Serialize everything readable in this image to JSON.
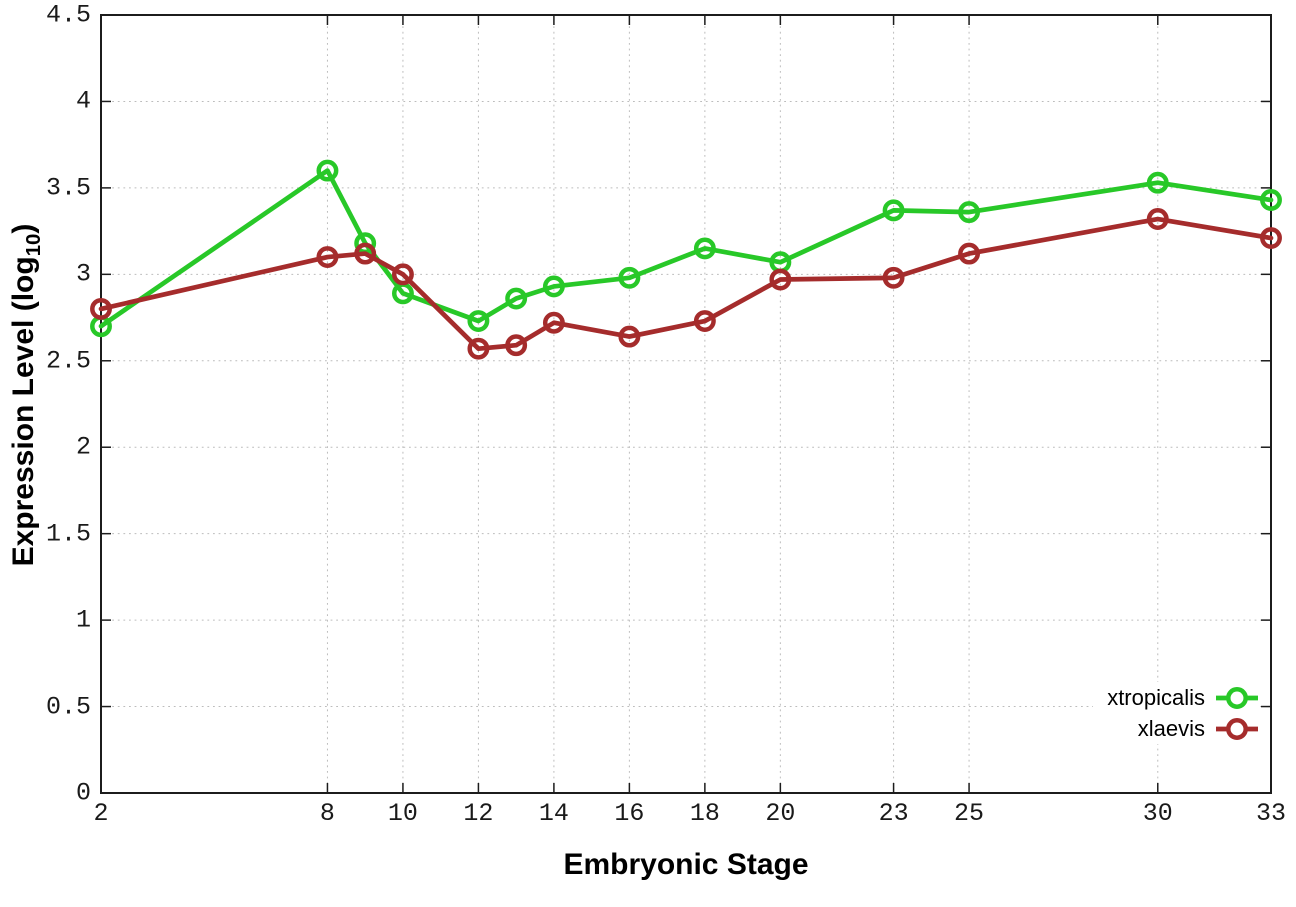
{
  "chart_data": {
    "type": "line",
    "title": "",
    "xlabel": "Embryonic Stage",
    "ylabel": "Expression Level (log10)",
    "ylabel_parts": {
      "main": "Expression Level (log",
      "sub": "10",
      "close": ")"
    },
    "xlim": [
      2,
      33
    ],
    "ylim": [
      0,
      4.5
    ],
    "grid": true,
    "legend_position": "inside-bottom-right",
    "background_color": "#ffffff",
    "axis_color": "#1c1c1c",
    "grid_color": "#bcbcbc",
    "x_ticks": [
      {
        "value": 2,
        "label": "2"
      },
      {
        "value": 8,
        "label": "8"
      },
      {
        "value": 10,
        "label": "10"
      },
      {
        "value": 12,
        "label": "12"
      },
      {
        "value": 14,
        "label": "14"
      },
      {
        "value": 16,
        "label": "16"
      },
      {
        "value": 18,
        "label": "18"
      },
      {
        "value": 20,
        "label": "20"
      },
      {
        "value": 23,
        "label": "23"
      },
      {
        "value": 25,
        "label": "25"
      },
      {
        "value": 30,
        "label": "30"
      },
      {
        "value": 33,
        "label": "33"
      }
    ],
    "y_ticks": [
      {
        "value": 0,
        "label": "0"
      },
      {
        "value": 0.5,
        "label": "0.5"
      },
      {
        "value": 1,
        "label": "1"
      },
      {
        "value": 1.5,
        "label": "1.5"
      },
      {
        "value": 2,
        "label": "2"
      },
      {
        "value": 2.5,
        "label": "2.5"
      },
      {
        "value": 3,
        "label": "3"
      },
      {
        "value": 3.5,
        "label": "3.5"
      },
      {
        "value": 4,
        "label": "4"
      },
      {
        "value": 4.5,
        "label": "4.5"
      }
    ],
    "x": [
      2,
      8,
      9,
      10,
      12,
      13,
      14,
      16,
      18,
      20,
      23,
      25,
      30,
      33
    ],
    "series": [
      {
        "name": "xtropicalis",
        "color": "#28C828",
        "marker": "open-circle",
        "values": [
          2.7,
          3.6,
          3.18,
          2.89,
          2.73,
          2.86,
          2.93,
          2.98,
          3.15,
          3.07,
          3.37,
          3.36,
          3.53,
          3.43
        ]
      },
      {
        "name": "xlaevis",
        "color": "#A52C2C",
        "marker": "open-circle",
        "values": [
          2.8,
          3.1,
          3.12,
          3.0,
          2.57,
          2.59,
          2.72,
          2.64,
          2.73,
          2.97,
          2.98,
          3.12,
          3.32,
          3.21
        ]
      }
    ]
  }
}
